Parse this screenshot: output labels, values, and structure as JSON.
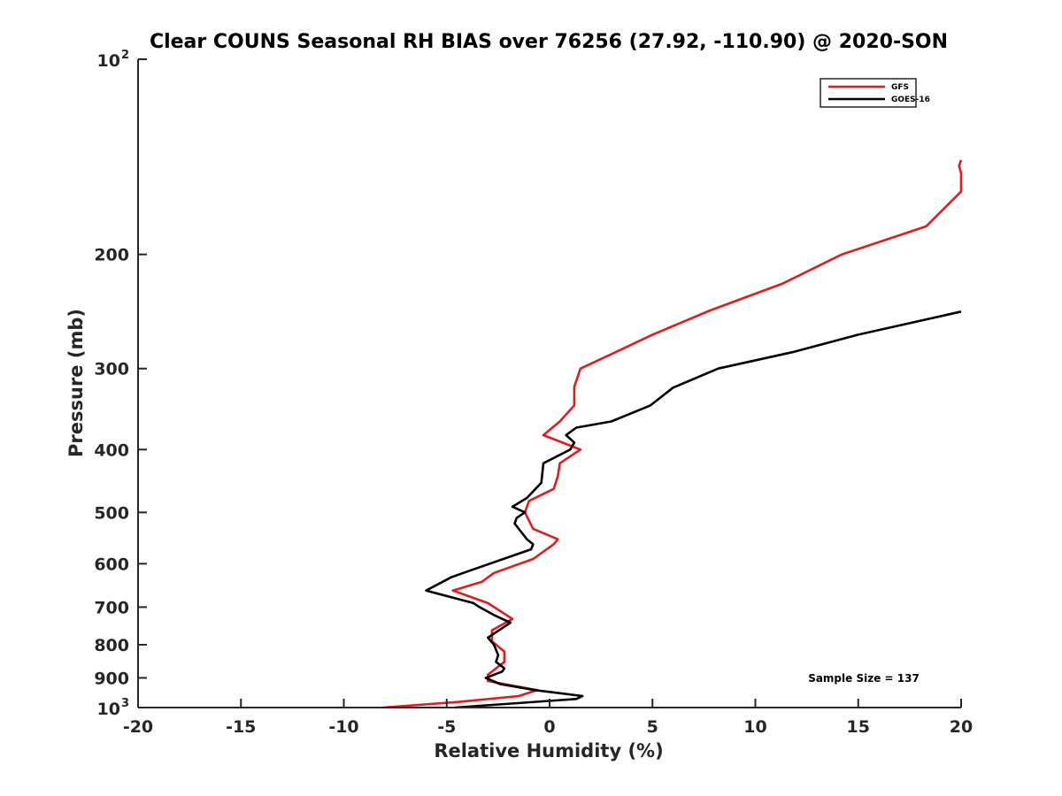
{
  "chart_data": {
    "type": "line",
    "title": "Clear COUNS Seasonal RH BIAS over 76256 (27.92, -110.90) @ 2020-SON",
    "xlabel": "Relative Humidity (%)",
    "ylabel": "Pressure (mb)",
    "xlim": [
      -20,
      20
    ],
    "ylim": [
      100,
      1000
    ],
    "yscale": "log",
    "yreversed": true,
    "grid": false,
    "x_ticks": [
      -20,
      -15,
      -10,
      -5,
      0,
      5,
      10,
      15,
      20
    ],
    "x_tick_labels": [
      "-20",
      "-15",
      "-10",
      "-5",
      "0",
      "5",
      "10",
      "15",
      "20"
    ],
    "y_ticks": [
      {
        "value": 100,
        "label": "10",
        "sup": "2"
      },
      {
        "value": 200,
        "label": "200"
      },
      {
        "value": 300,
        "label": "300"
      },
      {
        "value": 400,
        "label": "400"
      },
      {
        "value": 500,
        "label": "500"
      },
      {
        "value": 600,
        "label": "600"
      },
      {
        "value": 700,
        "label": "700"
      },
      {
        "value": 800,
        "label": "800"
      },
      {
        "value": 900,
        "label": "900"
      },
      {
        "value": 1000,
        "label": "10",
        "sup": "3"
      }
    ],
    "legend_position": "top-right",
    "annotation": "Sample Size = 137",
    "series": [
      {
        "name": "GFS",
        "color": "#e41a1c",
        "points": [
          [
            20.0,
            143
          ],
          [
            19.9,
            146
          ],
          [
            20.0,
            150
          ],
          [
            20.0,
            160
          ],
          [
            18.3,
            181
          ],
          [
            14.2,
            200
          ],
          [
            11.3,
            222
          ],
          [
            7.8,
            244
          ],
          [
            5.0,
            266
          ],
          [
            3.0,
            285
          ],
          [
            1.5,
            300
          ],
          [
            1.2,
            320
          ],
          [
            1.2,
            342
          ],
          [
            0.5,
            362
          ],
          [
            -0.3,
            380
          ],
          [
            1.5,
            400
          ],
          [
            0.5,
            420
          ],
          [
            0.4,
            440
          ],
          [
            0.2,
            460
          ],
          [
            -1.0,
            480
          ],
          [
            -1.2,
            500
          ],
          [
            -0.8,
            530
          ],
          [
            0.4,
            550
          ],
          [
            0.2,
            560
          ],
          [
            -0.8,
            590
          ],
          [
            -2.7,
            620
          ],
          [
            -3.3,
            640
          ],
          [
            -4.7,
            660
          ],
          [
            -3.0,
            690
          ],
          [
            -1.8,
            730
          ],
          [
            -2.8,
            760
          ],
          [
            -2.8,
            790
          ],
          [
            -2.2,
            820
          ],
          [
            -2.2,
            850
          ],
          [
            -3.0,
            890
          ],
          [
            -3.0,
            910
          ],
          [
            -0.6,
            940
          ],
          [
            -1.5,
            960
          ],
          [
            -4.4,
            980
          ],
          [
            -8.1,
            1000
          ]
        ]
      },
      {
        "name": "GOES-16",
        "color": "#000000",
        "points": [
          [
            20.0,
            245
          ],
          [
            15.0,
            266
          ],
          [
            11.8,
            283
          ],
          [
            8.2,
            300
          ],
          [
            6.0,
            321
          ],
          [
            4.9,
            342
          ],
          [
            3.0,
            362
          ],
          [
            1.3,
            370
          ],
          [
            0.8,
            380
          ],
          [
            1.2,
            390
          ],
          [
            1.0,
            400
          ],
          [
            -0.3,
            420
          ],
          [
            -0.4,
            450
          ],
          [
            -1.1,
            475
          ],
          [
            -1.8,
            490
          ],
          [
            -1.2,
            500
          ],
          [
            -1.6,
            510
          ],
          [
            -1.7,
            520
          ],
          [
            -1.5,
            530
          ],
          [
            -1.1,
            550
          ],
          [
            -0.8,
            560
          ],
          [
            -0.9,
            570
          ],
          [
            -4.2,
            620
          ],
          [
            -4.8,
            630
          ],
          [
            -6.0,
            660
          ],
          [
            -3.7,
            690
          ],
          [
            -3.4,
            700
          ],
          [
            -2.7,
            720
          ],
          [
            -1.9,
            740
          ],
          [
            -3.0,
            780
          ],
          [
            -2.7,
            800
          ],
          [
            -2.5,
            830
          ],
          [
            -2.6,
            850
          ],
          [
            -2.2,
            870
          ],
          [
            -2.3,
            880
          ],
          [
            -3.1,
            900
          ],
          [
            -2.4,
            920
          ],
          [
            -0.7,
            940
          ],
          [
            1.6,
            960
          ],
          [
            1.3,
            970
          ],
          [
            -4.6,
            1000
          ]
        ]
      }
    ]
  }
}
